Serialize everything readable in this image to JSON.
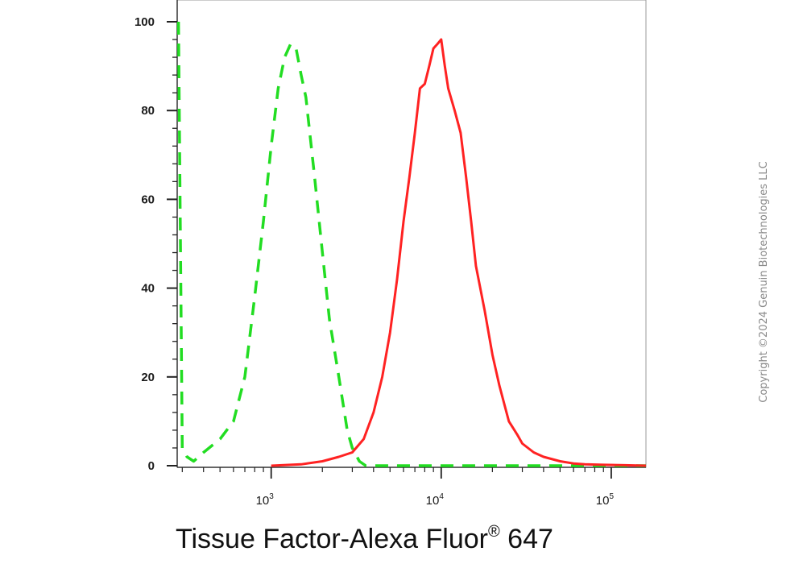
{
  "chart_data": {
    "type": "line",
    "x_scale": "log",
    "xlim": [
      280,
      160000
    ],
    "ylim": [
      0,
      100
    ],
    "y_ticks": [
      0,
      20,
      40,
      60,
      80,
      100
    ],
    "y_tick_labels": [
      "0",
      "20",
      "40",
      "60",
      "80",
      "100"
    ],
    "x_ticks": [
      1000,
      10000,
      100000
    ],
    "x_tick_labels": [
      {
        "base": "10",
        "exp": "3"
      },
      {
        "base": "10",
        "exp": "4"
      },
      {
        "base": "10",
        "exp": "5"
      }
    ],
    "xlabel": "Tissue Factor-Alexa Fluor",
    "xlabel_sup": "®",
    "xlabel_suffix": " 647",
    "grid": false,
    "series": [
      {
        "color": "#22dd22",
        "style": "dashed",
        "x": [
          285,
          300,
          320,
          350,
          400,
          500,
          600,
          700,
          800,
          900,
          1000,
          1100,
          1200,
          1300,
          1400,
          1500,
          1600,
          1800,
          2000,
          2200,
          2500,
          2800,
          3000,
          3300,
          3600,
          4000,
          5000,
          10000,
          50000,
          160000
        ],
        "y": [
          100,
          4,
          2,
          1,
          3,
          6,
          10,
          20,
          38,
          55,
          72,
          85,
          92,
          95,
          94,
          88,
          83,
          65,
          48,
          33,
          20,
          8,
          4,
          1,
          0,
          0,
          0,
          0,
          0,
          0
        ]
      },
      {
        "color": "#ff2222",
        "style": "solid",
        "x": [
          1000,
          1500,
          2000,
          2500,
          3000,
          3500,
          4000,
          4500,
          5000,
          5500,
          6000,
          6500,
          7000,
          7500,
          8000,
          8500,
          9000,
          9500,
          10000,
          10500,
          11000,
          12000,
          13000,
          14000,
          15000,
          16000,
          18000,
          20000,
          22000,
          25000,
          28000,
          30000,
          35000,
          40000,
          50000,
          60000,
          70000,
          90000,
          120000,
          160000
        ],
        "y": [
          0,
          0.3,
          1,
          2,
          3,
          6,
          12,
          20,
          30,
          42,
          55,
          65,
          75,
          85,
          86,
          90,
          94,
          95,
          96,
          90,
          85,
          80,
          75,
          65,
          55,
          45,
          35,
          25,
          18,
          10,
          7,
          5,
          3,
          2,
          1,
          0.5,
          0.3,
          0.2,
          0.1,
          0
        ]
      }
    ]
  },
  "watermark": "Copyright ©2024 Genuin Biotechnologies LLC"
}
